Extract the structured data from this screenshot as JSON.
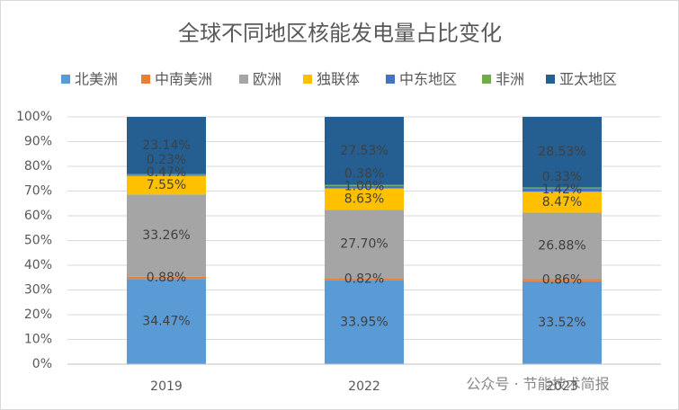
{
  "chart_data": {
    "type": "stacked_bar_percent",
    "title": "全球不同地区核能发电量占比变化",
    "categories": [
      "2019",
      "2022",
      "2023"
    ],
    "series": [
      {
        "name": "北美洲",
        "color": "#5b9bd5",
        "values": [
          34.47,
          33.95,
          33.52
        ],
        "value_labels": [
          "34.47%",
          "33.95%",
          "33.52%"
        ]
      },
      {
        "name": "中南美洲",
        "color": "#ed7d31",
        "values": [
          0.88,
          0.82,
          0.86
        ],
        "value_labels": [
          "0.88%",
          "0.82%",
          "0.86%"
        ]
      },
      {
        "name": "欧洲",
        "color": "#a5a5a5",
        "values": [
          33.26,
          27.7,
          26.88
        ],
        "value_labels": [
          "33.26%",
          "27.70%",
          "26.88%"
        ]
      },
      {
        "name": "独联体",
        "color": "#ffc000",
        "values": [
          7.55,
          8.63,
          8.47
        ],
        "value_labels": [
          "7.55%",
          "8.63%",
          "8.47%"
        ]
      },
      {
        "name": "中东地区",
        "color": "#4472c4",
        "values": [
          0.47,
          1.0,
          1.42
        ],
        "value_labels": [
          "0.47%",
          "1.00%",
          "1.42%"
        ]
      },
      {
        "name": "非洲",
        "color": "#70ad47",
        "values": [
          0.23,
          0.38,
          0.33
        ],
        "value_labels": [
          "0.23%",
          "0.38%",
          "0.33%"
        ]
      },
      {
        "name": "亚太地区",
        "color": "#255e91",
        "values": [
          23.14,
          27.53,
          28.53
        ],
        "value_labels": [
          "23.14%",
          "27.53%",
          "28.53%"
        ]
      }
    ],
    "ylim": [
      0,
      100
    ],
    "yticks": [
      {
        "value": 0,
        "label": "0%"
      },
      {
        "value": 10,
        "label": "10%"
      },
      {
        "value": 20,
        "label": "20%"
      },
      {
        "value": 30,
        "label": "30%"
      },
      {
        "value": 40,
        "label": "40%"
      },
      {
        "value": 50,
        "label": "50%"
      },
      {
        "value": 60,
        "label": "60%"
      },
      {
        "value": 70,
        "label": "70%"
      },
      {
        "value": 80,
        "label": "80%"
      },
      {
        "value": 90,
        "label": "90%"
      },
      {
        "value": 100,
        "label": "100%"
      }
    ],
    "grid": true,
    "legend": "top",
    "watermark": "公众号 · 节能技术简报"
  }
}
